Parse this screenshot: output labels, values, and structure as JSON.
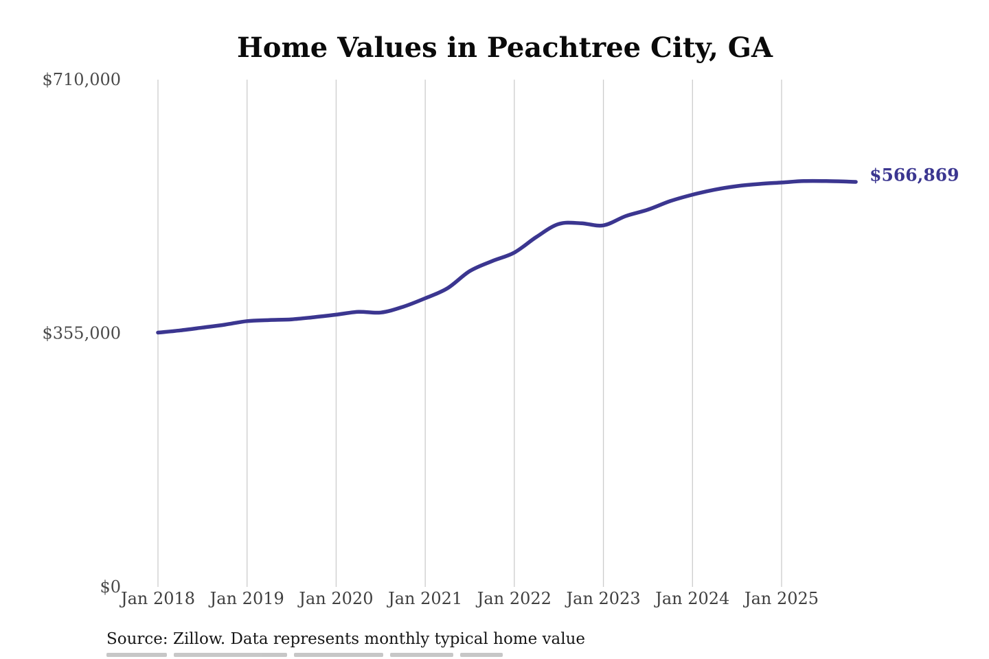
{
  "chart_data": {
    "type": "line",
    "title": "Home Values in Peachtree City, GA",
    "source_note": "Source: Zillow. Data represents monthly typical home value",
    "end_label": "$566,869",
    "latest_value": 566869,
    "line_color": "#3b3690",
    "grid_color": "#cccccc",
    "background_color": "#ffffff",
    "grid": "vertical-only",
    "legend": "none",
    "ylim": [
      0,
      710000
    ],
    "y_ticks": [
      {
        "value": 710000,
        "label": "$710,000"
      },
      {
        "value": 355000,
        "label": "$355,000"
      },
      {
        "value": 0,
        "label": "$0"
      }
    ],
    "x_ticks": [
      "Jan 2018",
      "Jan 2019",
      "Jan 2020",
      "Jan 2021",
      "Jan 2022",
      "Jan 2023",
      "Jan 2024",
      "Jan 2025"
    ],
    "series": [
      {
        "name": "Monthly typical home value",
        "points": [
          {
            "date": "Jan 2018",
            "value": 356000
          },
          {
            "date": "Apr 2018",
            "value": 359000
          },
          {
            "date": "Jul 2018",
            "value": 363000
          },
          {
            "date": "Oct 2018",
            "value": 367000
          },
          {
            "date": "Jan 2019",
            "value": 372000
          },
          {
            "date": "Apr 2019",
            "value": 373500
          },
          {
            "date": "Jul 2019",
            "value": 374500
          },
          {
            "date": "Oct 2019",
            "value": 377500
          },
          {
            "date": "Jan 2020",
            "value": 381000
          },
          {
            "date": "Apr 2020",
            "value": 385000
          },
          {
            "date": "Jul 2020",
            "value": 384000
          },
          {
            "date": "Oct 2020",
            "value": 392000
          },
          {
            "date": "Jan 2021",
            "value": 404000
          },
          {
            "date": "Apr 2021",
            "value": 418000
          },
          {
            "date": "Jul 2021",
            "value": 442000
          },
          {
            "date": "Oct 2021",
            "value": 456000
          },
          {
            "date": "Jan 2022",
            "value": 468000
          },
          {
            "date": "Apr 2022",
            "value": 490000
          },
          {
            "date": "Jul 2022",
            "value": 508000
          },
          {
            "date": "Oct 2022",
            "value": 509000
          },
          {
            "date": "Jan 2023",
            "value": 506000
          },
          {
            "date": "Apr 2023",
            "value": 519000
          },
          {
            "date": "Jul 2023",
            "value": 528000
          },
          {
            "date": "Oct 2023",
            "value": 540000
          },
          {
            "date": "Jan 2024",
            "value": 549000
          },
          {
            "date": "Apr 2024",
            "value": 556000
          },
          {
            "date": "Jul 2024",
            "value": 561000
          },
          {
            "date": "Oct 2024",
            "value": 564000
          },
          {
            "date": "Jan 2025",
            "value": 566000
          },
          {
            "date": "Apr 2025",
            "value": 568000
          },
          {
            "date": "Jul 2025",
            "value": 568000
          },
          {
            "date": "Oct 2025",
            "value": 567200
          },
          {
            "date": "Nov 2025",
            "value": 566869
          }
        ]
      }
    ]
  }
}
